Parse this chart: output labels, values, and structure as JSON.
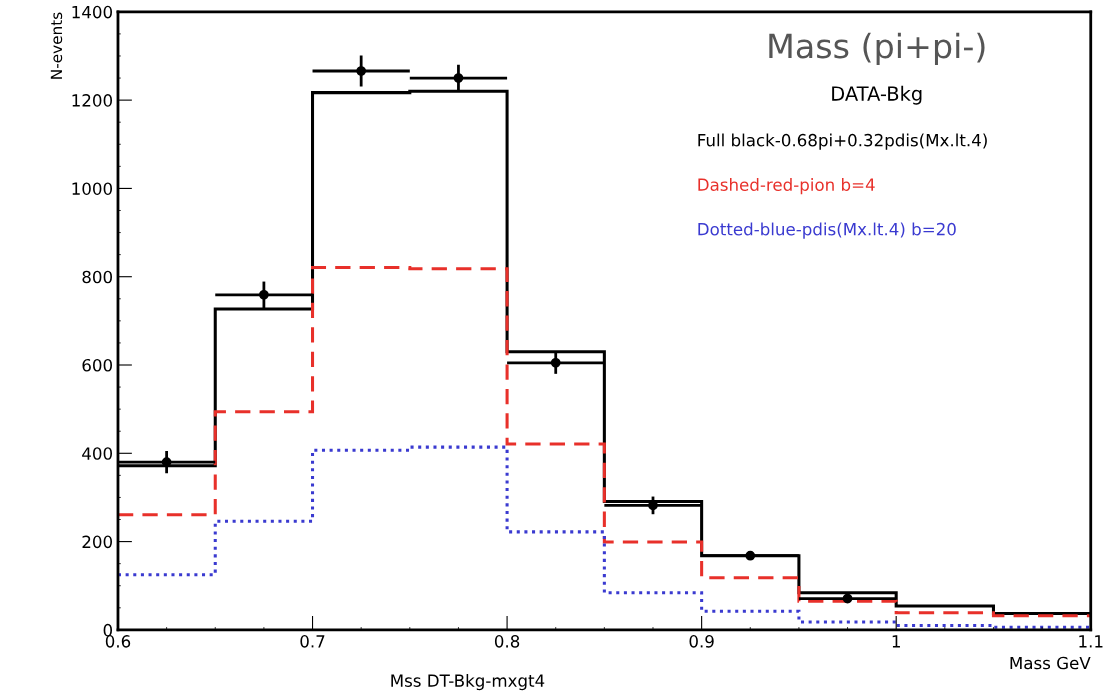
{
  "chart_data": {
    "type": "histogram",
    "title": "Mass (pi+pi-)",
    "subtitle": "DATA-Bkg",
    "xlabel": "Mass GeV",
    "ylabel": "N-events",
    "annotations": [
      "Mss DT-Bkg-mxgt4"
    ],
    "bins": [
      0.6,
      0.65,
      0.7,
      0.75,
      0.8,
      0.85,
      0.9,
      0.95,
      1.0,
      1.05,
      1.1
    ],
    "series": [
      {
        "name": "Full black-0.68pi+0.32pdis(Mx.lt.4)",
        "color": "#000000",
        "line_style": "solid",
        "values": [
          372,
          727,
          1217,
          1220,
          630,
          291,
          168,
          84,
          54,
          37
        ]
      },
      {
        "name": "Dashed-red-pion b=4",
        "color": "#e8302a",
        "line_style": "dashed",
        "values": [
          261,
          494,
          821,
          818,
          421,
          199,
          118,
          65,
          39,
          32
        ]
      },
      {
        "name": "Dotted-blue-pdis(Mx.lt.4) b=20",
        "color": "#3a3ad0",
        "line_style": "dotted",
        "values": [
          125,
          246,
          407,
          414,
          222,
          84,
          42,
          18,
          10,
          6
        ]
      },
      {
        "type": "scatter",
        "color": "#000000",
        "marker": "circle",
        "x": [
          0.625,
          0.675,
          0.725,
          0.775,
          0.825,
          0.875,
          0.925,
          0.975
        ],
        "values": [
          380,
          759,
          1266,
          1250,
          605,
          282,
          168,
          71
        ],
        "errors": [
          25,
          30,
          35,
          30,
          25,
          20,
          8,
          8
        ],
        "xerrors": [
          0.025,
          0.025,
          0.025,
          0.025,
          0.025,
          0.025,
          0.025,
          0.025
        ]
      }
    ],
    "xlim": [
      0.6,
      1.1
    ],
    "ylim": [
      0,
      1400
    ],
    "xticks": [
      0.6,
      0.7,
      0.8,
      0.9,
      1,
      1.1
    ],
    "yticks": [
      0,
      200,
      400,
      600,
      800,
      1000,
      1200,
      1400
    ],
    "grid": false,
    "legend": "top right"
  }
}
